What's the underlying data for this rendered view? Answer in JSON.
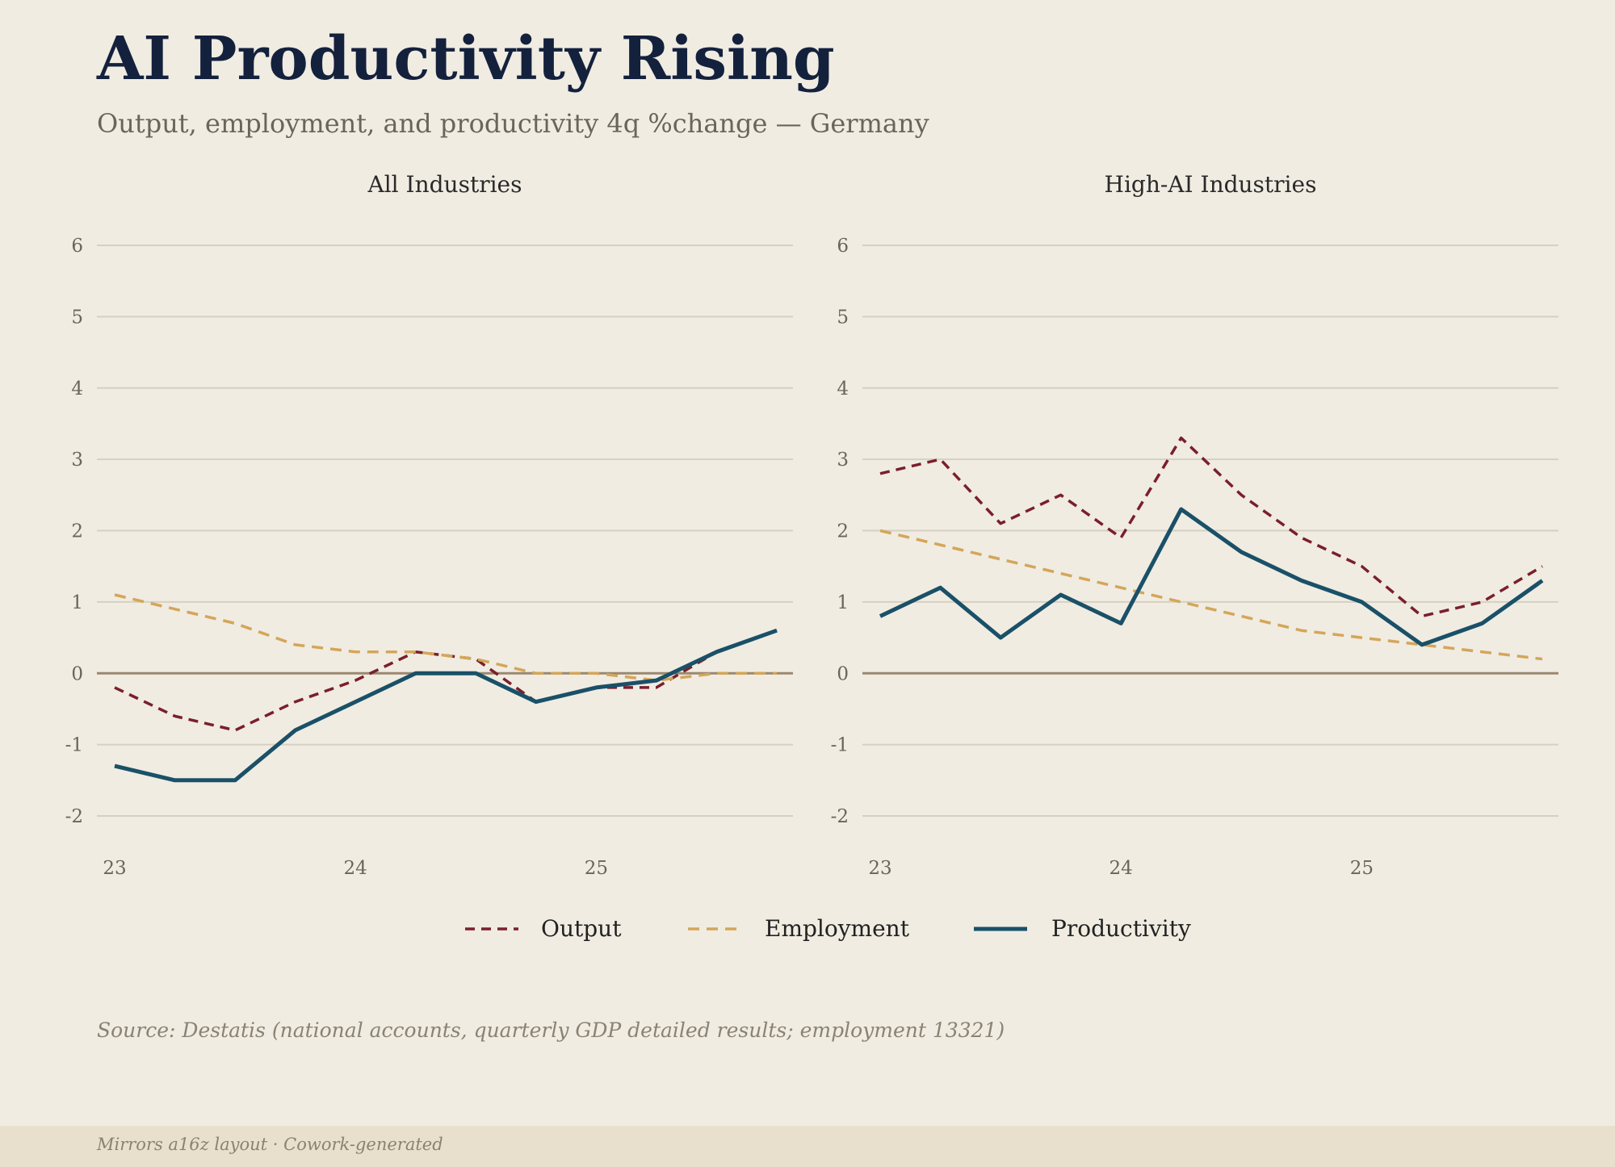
{
  "title": "AI Productivity Rising",
  "subtitle": "Output, employment, and productivity 4q %change — Germany",
  "source": "Source: Destatis (national accounts, quarterly GDP detailed results; employment 13321)",
  "footer": "Mirrors a16z layout · Cowork-generated",
  "colors": {
    "output": "#7a1f2b",
    "employment": "#d4a65a",
    "productivity": "#1a5068",
    "grid": "#d6d0c2",
    "zero": "#9a8870",
    "tick": "#6b6558"
  },
  "chart_data": [
    {
      "type": "line",
      "title": "All Industries",
      "x": [
        23,
        23.25,
        23.5,
        23.75,
        24,
        24.25,
        24.5,
        24.75,
        25,
        25.25,
        25.5,
        25.75
      ],
      "xticks": [
        "23",
        "24",
        "25"
      ],
      "yticks": [
        "6",
        "5",
        "4",
        "3",
        "2",
        "1",
        "0",
        "-1",
        "-2"
      ],
      "ylim": [
        -2.5,
        6
      ],
      "grid": true,
      "series": [
        {
          "name": "Output",
          "values": [
            -0.2,
            -0.6,
            -0.8,
            -0.4,
            -0.1,
            0.3,
            0.2,
            -0.4,
            -0.2,
            -0.2,
            0.3,
            0.6
          ]
        },
        {
          "name": "Employment",
          "values": [
            1.1,
            0.9,
            0.7,
            0.4,
            0.3,
            0.3,
            0.2,
            0.0,
            0.0,
            -0.1,
            0.0,
            0.0
          ]
        },
        {
          "name": "Productivity",
          "values": [
            -1.3,
            -1.5,
            -1.5,
            -0.8,
            -0.4,
            0.0,
            0.0,
            -0.4,
            -0.2,
            -0.1,
            0.3,
            0.6
          ]
        }
      ]
    },
    {
      "type": "line",
      "title": "High-AI Industries",
      "x": [
        23,
        23.25,
        23.5,
        23.75,
        24,
        24.25,
        24.5,
        24.75,
        25,
        25.25,
        25.5,
        25.75
      ],
      "xticks": [
        "23",
        "24",
        "25"
      ],
      "yticks": [
        "6",
        "5",
        "4",
        "3",
        "2",
        "1",
        "0",
        "-1",
        "-2"
      ],
      "ylim": [
        -2.5,
        6
      ],
      "grid": true,
      "series": [
        {
          "name": "Output",
          "values": [
            2.8,
            3.0,
            2.1,
            2.5,
            1.9,
            3.3,
            2.5,
            1.9,
            1.5,
            0.8,
            1.0,
            1.5
          ]
        },
        {
          "name": "Employment",
          "values": [
            2.0,
            1.8,
            1.6,
            1.4,
            1.2,
            1.0,
            0.8,
            0.6,
            0.5,
            0.4,
            0.3,
            0.2
          ]
        },
        {
          "name": "Productivity",
          "values": [
            0.8,
            1.2,
            0.5,
            1.1,
            0.7,
            2.3,
            1.7,
            1.3,
            1.0,
            0.4,
            0.7,
            1.3
          ]
        }
      ]
    }
  ],
  "legend": [
    {
      "label": "Output",
      "style": "dashed"
    },
    {
      "label": "Employment",
      "style": "dashed-light"
    },
    {
      "label": "Productivity",
      "style": "solid"
    }
  ]
}
